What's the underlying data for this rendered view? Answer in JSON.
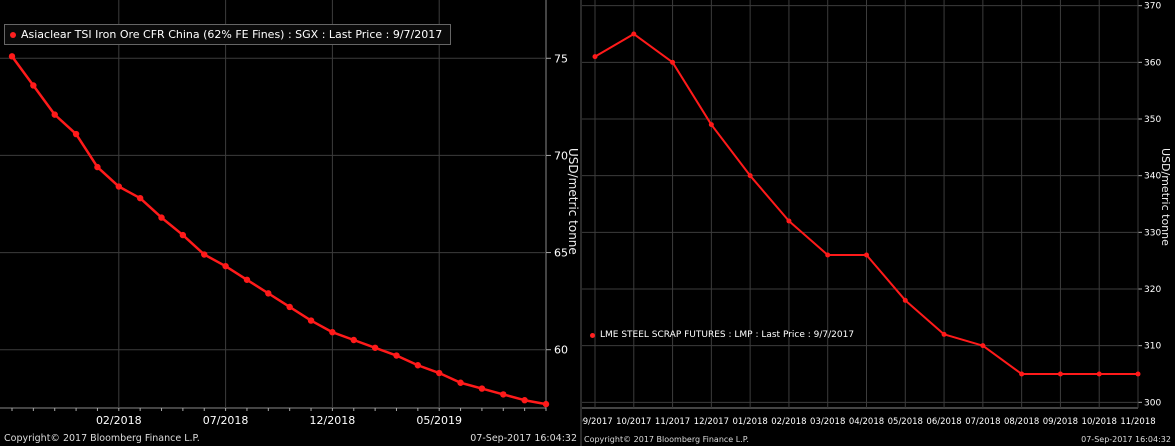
{
  "charts": {
    "left": {
      "legend": "Asiaclear TSI Iron Ore CFR China (62% FE Fines) : SGX : Last Price : 9/7/2017",
      "ylabel": "USD/metric tonne",
      "copyright": "Copyright© 2017 Bloomberg Finance L.P.",
      "timestamp": "07-Sep-2017 16:04:32"
    },
    "right": {
      "legend": "LME STEEL SCRAP FUTURES : LMP : Last Price : 9/7/2017",
      "ylabel": "USD/metric tonne",
      "copyright": "Copyright© 2017 Bloomberg Finance L.P.",
      "timestamp": "07-Sep-2017 16:04:32"
    }
  },
  "colors": {
    "line": "#ff1a1a",
    "grid": "#3c3c3c",
    "background": "#000000",
    "text": "#ffffff"
  },
  "chart_data": [
    {
      "type": "line",
      "title": "Asiaclear TSI Iron Ore CFR China (62% FE Fines) : SGX : Last Price : 9/7/2017",
      "ylabel": "USD/metric tonne",
      "xlabel": "",
      "tick_labels_x": [
        "02/2018",
        "07/2018",
        "12/2018",
        "05/2019"
      ],
      "tick_labels_y": [
        "60",
        "65",
        "70",
        "75"
      ],
      "xlim": [
        0,
        25
      ],
      "ylim": [
        57,
        78
      ],
      "grid": true,
      "x": [
        0,
        1,
        2,
        3,
        4,
        5,
        6,
        7,
        8,
        9,
        10,
        11,
        12,
        13,
        14,
        15,
        16,
        17,
        18,
        19,
        20,
        21,
        22,
        23,
        24,
        25
      ],
      "series": [
        {
          "values": [
            75.1,
            73.6,
            72.1,
            71.1,
            69.4,
            68.4,
            67.8,
            66.8,
            65.9,
            64.9,
            64.3,
            63.6,
            62.9,
            62.2,
            61.5,
            60.9,
            60.5,
            60.1,
            59.7,
            59.2,
            58.8,
            58.3,
            58.0,
            57.7,
            57.4,
            57.2
          ]
        }
      ],
      "x_tick_positions": [
        5,
        10,
        15,
        20
      ]
    },
    {
      "type": "line",
      "title": "LME STEEL SCRAP FUTURES : LMP : Last Price : 9/7/2017",
      "ylabel": "USD/metric tonne",
      "xlabel": "",
      "categories": [
        "09/2017",
        "10/2017",
        "11/2017",
        "12/2017",
        "01/2018",
        "02/2018",
        "03/2018",
        "04/2018",
        "05/2018",
        "06/2018",
        "07/2018",
        "08/2018",
        "09/2018",
        "10/2018",
        "11/2018"
      ],
      "tick_labels_y": [
        "300",
        "310",
        "320",
        "330",
        "340",
        "350",
        "360",
        "370"
      ],
      "ylim": [
        299,
        371
      ],
      "grid": true,
      "series": [
        {
          "values": [
            361,
            365,
            360,
            349,
            340,
            332,
            326,
            326,
            318,
            312,
            310,
            305,
            305,
            305,
            305
          ]
        }
      ]
    }
  ]
}
